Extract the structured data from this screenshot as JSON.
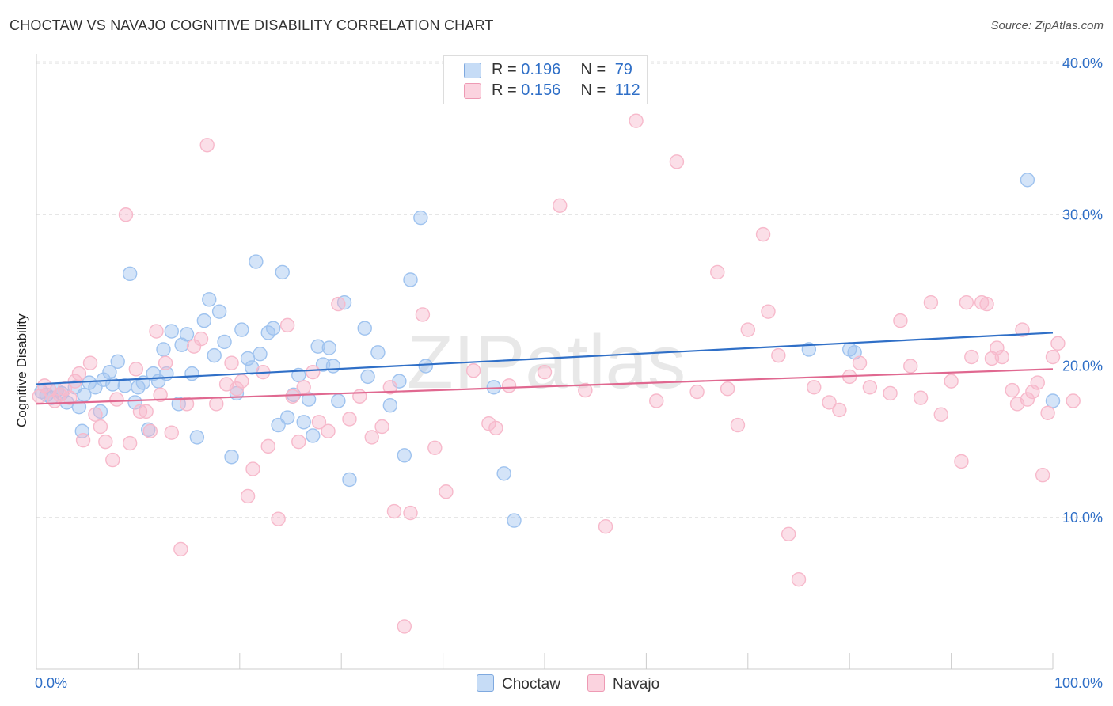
{
  "title": "CHOCTAW VS NAVAJO COGNITIVE DISABILITY CORRELATION CHART",
  "source": "Source: ZipAtlas.com",
  "watermark": "ZIPatlas",
  "legend_top": [
    {
      "r_label": "R = ",
      "r_value": "0.196",
      "n_label": "N = ",
      "n_value": "79",
      "color": "#9fc3ef"
    },
    {
      "r_label": "R = ",
      "r_value": "0.156",
      "n_label": "N = ",
      "n_value": "112",
      "color": "#f7b9cb"
    }
  ],
  "legend_bottom": [
    {
      "label": "Choctaw",
      "color": "#9fc3ef"
    },
    {
      "label": "Navajo",
      "color": "#f7b9cb"
    }
  ],
  "chart_data": {
    "type": "scatter",
    "title": "CHOCTAW VS NAVAJO COGNITIVE DISABILITY CORRELATION CHART",
    "xlabel": "",
    "ylabel": "Cognitive Disability",
    "xlim": [
      0,
      100
    ],
    "ylim": [
      0,
      40
    ],
    "x_tick_labels": [
      "0.0%",
      "100.0%"
    ],
    "y_ticks": [
      10,
      20,
      30,
      40
    ],
    "y_tick_labels": [
      "10.0%",
      "20.0%",
      "30.0%",
      "40.0%"
    ],
    "grid": "horizontal dashed",
    "legend": "top-center",
    "series": [
      {
        "name": "Choctaw",
        "color": "#2f6fc7",
        "fill": "#9fc3ef",
        "r": 0.196,
        "n": 79,
        "trend": [
          [
            0,
            18.8
          ],
          [
            100,
            22.2
          ]
        ],
        "points": [
          [
            0.5,
            18.3
          ],
          [
            1.0,
            18.1
          ],
          [
            1.5,
            17.9
          ],
          [
            2.0,
            18.4
          ],
          [
            2.5,
            18.2
          ],
          [
            3.0,
            17.6
          ],
          [
            3.8,
            18.6
          ],
          [
            4.2,
            17.3
          ],
          [
            4.5,
            15.7
          ],
          [
            4.7,
            18.1
          ],
          [
            5.2,
            18.9
          ],
          [
            5.8,
            18.6
          ],
          [
            6.3,
            17.0
          ],
          [
            6.6,
            19.1
          ],
          [
            7.2,
            19.6
          ],
          [
            7.5,
            18.8
          ],
          [
            8.0,
            20.3
          ],
          [
            8.7,
            18.7
          ],
          [
            9.2,
            26.1
          ],
          [
            9.7,
            17.6
          ],
          [
            10.0,
            18.6
          ],
          [
            10.5,
            18.9
          ],
          [
            11.0,
            15.8
          ],
          [
            11.5,
            19.5
          ],
          [
            12.0,
            19.0
          ],
          [
            12.5,
            21.1
          ],
          [
            12.8,
            19.5
          ],
          [
            13.3,
            22.3
          ],
          [
            14.0,
            17.5
          ],
          [
            14.3,
            21.4
          ],
          [
            14.8,
            22.1
          ],
          [
            15.3,
            19.5
          ],
          [
            15.8,
            15.3
          ],
          [
            16.5,
            23.0
          ],
          [
            17.0,
            24.4
          ],
          [
            17.5,
            20.7
          ],
          [
            18.0,
            23.6
          ],
          [
            18.5,
            21.6
          ],
          [
            19.2,
            14.0
          ],
          [
            19.7,
            18.2
          ],
          [
            20.2,
            22.4
          ],
          [
            20.8,
            20.5
          ],
          [
            21.2,
            19.9
          ],
          [
            21.6,
            26.9
          ],
          [
            22.0,
            20.8
          ],
          [
            22.8,
            22.2
          ],
          [
            23.3,
            22.5
          ],
          [
            23.8,
            16.1
          ],
          [
            24.2,
            26.2
          ],
          [
            24.7,
            16.6
          ],
          [
            25.3,
            18.1
          ],
          [
            25.8,
            19.4
          ],
          [
            26.3,
            16.3
          ],
          [
            26.8,
            17.8
          ],
          [
            27.2,
            15.4
          ],
          [
            27.7,
            21.3
          ],
          [
            28.2,
            20.1
          ],
          [
            28.8,
            21.2
          ],
          [
            29.2,
            20.0
          ],
          [
            29.7,
            17.7
          ],
          [
            30.3,
            24.2
          ],
          [
            30.8,
            12.5
          ],
          [
            32.3,
            22.5
          ],
          [
            32.6,
            19.3
          ],
          [
            33.6,
            20.9
          ],
          [
            34.8,
            17.4
          ],
          [
            35.7,
            19.0
          ],
          [
            36.2,
            14.1
          ],
          [
            36.8,
            25.7
          ],
          [
            37.8,
            29.8
          ],
          [
            38.3,
            20.0
          ],
          [
            45.0,
            18.6
          ],
          [
            46.0,
            12.9
          ],
          [
            47.0,
            9.8
          ],
          [
            76.0,
            21.1
          ],
          [
            80.0,
            21.1
          ],
          [
            80.5,
            20.9
          ],
          [
            97.5,
            32.3
          ],
          [
            100.0,
            17.7
          ]
        ]
      },
      {
        "name": "Navajo",
        "color": "#e06890",
        "fill": "#f7b9cb",
        "r": 0.156,
        "n": 112,
        "trend": [
          [
            0,
            17.5
          ],
          [
            100,
            19.8
          ]
        ],
        "points": [
          [
            0.3,
            18.0
          ],
          [
            0.8,
            18.7
          ],
          [
            1.3,
            18.4
          ],
          [
            1.8,
            17.7
          ],
          [
            2.3,
            18.1
          ],
          [
            2.8,
            18.5
          ],
          [
            3.3,
            17.9
          ],
          [
            3.8,
            19.0
          ],
          [
            4.2,
            19.5
          ],
          [
            4.6,
            15.1
          ],
          [
            5.3,
            20.2
          ],
          [
            5.8,
            16.8
          ],
          [
            6.3,
            16.0
          ],
          [
            6.8,
            15.0
          ],
          [
            7.5,
            13.8
          ],
          [
            7.9,
            17.8
          ],
          [
            8.8,
            30.0
          ],
          [
            9.2,
            14.9
          ],
          [
            9.8,
            19.8
          ],
          [
            10.2,
            17.0
          ],
          [
            10.8,
            17.0
          ],
          [
            11.2,
            15.7
          ],
          [
            11.8,
            22.3
          ],
          [
            12.2,
            18.1
          ],
          [
            12.7,
            20.2
          ],
          [
            13.3,
            15.6
          ],
          [
            14.2,
            7.9
          ],
          [
            14.8,
            17.5
          ],
          [
            15.5,
            21.3
          ],
          [
            16.2,
            21.8
          ],
          [
            16.8,
            34.6
          ],
          [
            17.7,
            17.5
          ],
          [
            18.7,
            18.8
          ],
          [
            19.2,
            20.2
          ],
          [
            19.7,
            18.5
          ],
          [
            20.2,
            19.0
          ],
          [
            20.8,
            11.4
          ],
          [
            21.3,
            13.2
          ],
          [
            22.3,
            19.6
          ],
          [
            22.8,
            14.7
          ],
          [
            23.8,
            9.9
          ],
          [
            24.7,
            22.7
          ],
          [
            25.2,
            18.0
          ],
          [
            25.8,
            15.0
          ],
          [
            26.3,
            18.6
          ],
          [
            27.2,
            19.6
          ],
          [
            27.8,
            16.3
          ],
          [
            28.7,
            15.7
          ],
          [
            29.7,
            24.1
          ],
          [
            30.8,
            16.5
          ],
          [
            31.8,
            18.0
          ],
          [
            33.0,
            15.3
          ],
          [
            34.0,
            16.0
          ],
          [
            34.8,
            18.6
          ],
          [
            35.2,
            10.4
          ],
          [
            36.2,
            2.8
          ],
          [
            36.8,
            10.3
          ],
          [
            38.0,
            23.4
          ],
          [
            39.2,
            14.6
          ],
          [
            40.3,
            11.7
          ],
          [
            43.0,
            19.7
          ],
          [
            44.5,
            16.2
          ],
          [
            45.2,
            15.9
          ],
          [
            46.5,
            18.7
          ],
          [
            50.0,
            19.6
          ],
          [
            51.5,
            30.6
          ],
          [
            54.0,
            18.4
          ],
          [
            56.0,
            9.4
          ],
          [
            59.0,
            36.2
          ],
          [
            61.0,
            17.7
          ],
          [
            63.0,
            33.5
          ],
          [
            65.0,
            18.3
          ],
          [
            67.0,
            26.2
          ],
          [
            68.0,
            18.5
          ],
          [
            69.0,
            16.1
          ],
          [
            70.0,
            22.4
          ],
          [
            71.5,
            28.7
          ],
          [
            72.0,
            23.6
          ],
          [
            73.0,
            20.7
          ],
          [
            74.0,
            8.9
          ],
          [
            75.0,
            5.9
          ],
          [
            76.5,
            18.6
          ],
          [
            78.0,
            17.6
          ],
          [
            79.0,
            17.1
          ],
          [
            80.0,
            19.3
          ],
          [
            81.0,
            20.2
          ],
          [
            82.0,
            18.6
          ],
          [
            84.0,
            18.2
          ],
          [
            85.0,
            23.0
          ],
          [
            86.0,
            20.0
          ],
          [
            87.0,
            17.9
          ],
          [
            88.0,
            24.2
          ],
          [
            89.0,
            16.8
          ],
          [
            90.0,
            19.0
          ],
          [
            91.0,
            13.7
          ],
          [
            91.5,
            24.2
          ],
          [
            92.0,
            20.6
          ],
          [
            93.0,
            24.2
          ],
          [
            93.5,
            24.1
          ],
          [
            94.0,
            20.5
          ],
          [
            94.5,
            21.2
          ],
          [
            95.0,
            20.6
          ],
          [
            96.0,
            18.4
          ],
          [
            96.5,
            17.5
          ],
          [
            97.0,
            22.4
          ],
          [
            97.5,
            17.8
          ],
          [
            98.0,
            18.3
          ],
          [
            98.5,
            18.9
          ],
          [
            99.0,
            12.8
          ],
          [
            99.5,
            16.9
          ],
          [
            100.0,
            20.6
          ],
          [
            100.5,
            21.5
          ],
          [
            102.0,
            17.7
          ]
        ]
      }
    ]
  }
}
